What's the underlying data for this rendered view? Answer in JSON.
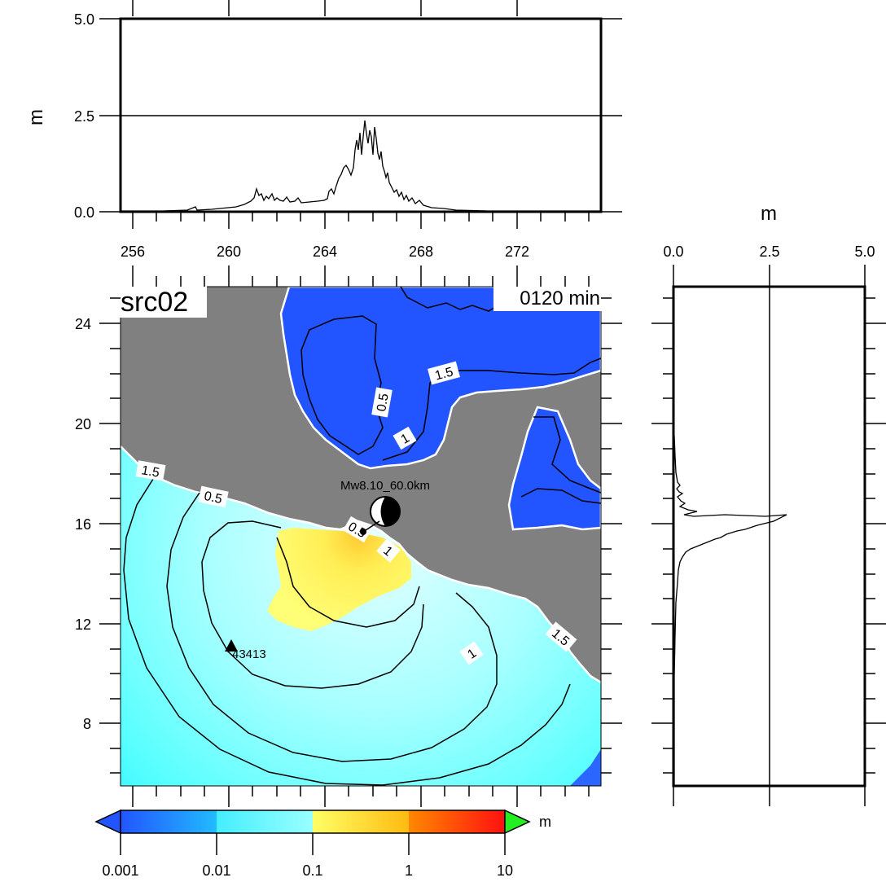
{
  "map": {
    "title": "src02",
    "time_label": "0120 min",
    "lat_ticks": [
      "24",
      "20",
      "16",
      "12",
      "8"
    ],
    "lon_ticks": [
      "256",
      "260",
      "264",
      "268",
      "272"
    ],
    "event_label": "Mw8.10_60.0km",
    "station_label": "43413",
    "contour_labels": [
      "1.5",
      "0.5",
      "1",
      "1.5",
      "0.5",
      "1",
      "1.5",
      "1",
      "0.5"
    ],
    "colors": {
      "land": "#808080",
      "deep_blue": "#2255ff",
      "cyan": "#44ffff",
      "light_cyan": "#c8ffff",
      "yellow": "#ffee55",
      "orange": "#ffaa22",
      "coast": "#ffffff"
    }
  },
  "top_panel": {
    "unit": "m",
    "y_ticks": [
      "5.0",
      "2.5",
      "0.0"
    ]
  },
  "right_panel": {
    "unit": "m",
    "x_ticks": [
      "0.0",
      "2.5",
      "5.0"
    ]
  },
  "colorbar": {
    "unit": "m",
    "ticks": [
      "0.001",
      "0.01",
      "0.1",
      "1",
      "10"
    ],
    "colors": [
      "#2255ff",
      "#33ddff",
      "#44ffff",
      "#ddffff",
      "#ffff66",
      "#ffcc22",
      "#ff6600",
      "#ff1111"
    ],
    "under_color": "#2255ff",
    "over_color": "#22ee22"
  }
}
